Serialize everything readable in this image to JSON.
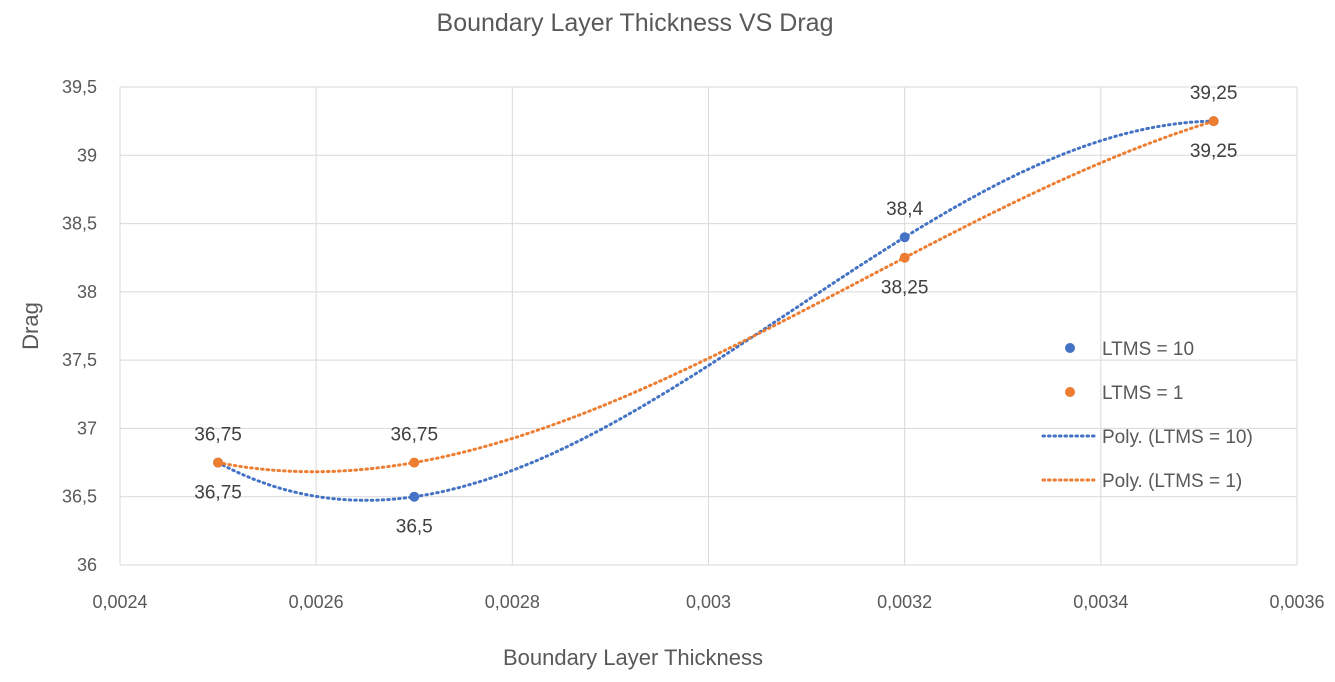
{
  "chart_data": {
    "type": "scatter",
    "title": "Boundary Layer Thickness VS Drag",
    "xlabel": "Boundary Layer Thickness",
    "ylabel": "Drag",
    "xlim": [
      0.0024,
      0.0036
    ],
    "ylim": [
      36,
      39.5
    ],
    "grid": true,
    "legend_position": "right",
    "x_ticks": [
      0.0024,
      0.0026,
      0.0028,
      0.003,
      0.0032,
      0.0034,
      0.0036
    ],
    "x_tick_labels": [
      "0,0024",
      "0,0026",
      "0,0028",
      "0,003",
      "0,0032",
      "0,0034",
      "0,0036"
    ],
    "y_ticks": [
      36,
      36.5,
      37,
      37.5,
      38,
      38.5,
      39,
      39.5
    ],
    "y_tick_labels": [
      "36",
      "36,5",
      "37",
      "37,5",
      "38",
      "38,5",
      "39",
      "39,5"
    ],
    "series": [
      {
        "name": "LTMS = 10",
        "color": "#4472C4",
        "x": [
          0.0025,
          0.0027,
          0.0032,
          0.003515
        ],
        "y": [
          36.75,
          36.5,
          38.4,
          39.25
        ],
        "data_labels": [
          "36,75",
          "36,5",
          "38,4",
          "39,25"
        ],
        "label_positions": [
          "above",
          "below",
          "above",
          "above"
        ]
      },
      {
        "name": "LTMS = 1",
        "color": "#ED7D31",
        "x": [
          0.0025,
          0.0027,
          0.0032,
          0.003515
        ],
        "y": [
          36.75,
          36.75,
          38.25,
          39.25
        ],
        "data_labels": [
          "36,75",
          "36,75",
          "38,25",
          "39,25"
        ],
        "label_positions": [
          "above",
          "above",
          "below",
          "above"
        ]
      }
    ],
    "trendlines": [
      {
        "name": "Poly. (LTMS = 10)",
        "type": "polynomial",
        "order": 3,
        "series": 0,
        "color": "#4472C4"
      },
      {
        "name": "Poly. (LTMS = 1)",
        "type": "polynomial",
        "order": 3,
        "series": 1,
        "color": "#ED7D31"
      }
    ],
    "legend": [
      "LTMS = 10",
      "LTMS = 1",
      "Poly. (LTMS = 10)",
      "Poly. (LTMS = 1)"
    ]
  }
}
